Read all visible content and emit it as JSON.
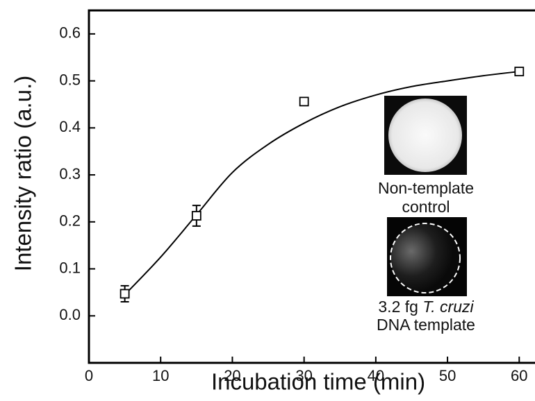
{
  "chart_data": {
    "type": "scatter",
    "x_label": "Incubation time (min)",
    "y_label": "Intensity ratio (a.u.)",
    "x": [
      5,
      15,
      30,
      60
    ],
    "values": [
      0.047,
      0.213,
      0.456,
      0.52
    ],
    "errors": [
      0.017,
      0.022,
      0.008,
      0.008
    ],
    "fit_x": [
      5,
      10,
      15,
      20,
      25,
      30,
      35,
      40,
      45,
      50,
      55,
      60
    ],
    "fit_values": [
      0.045,
      0.125,
      0.215,
      0.305,
      0.365,
      0.41,
      0.445,
      0.47,
      0.488,
      0.5,
      0.511,
      0.52
    ],
    "color": "#000000",
    "xlim": [
      0,
      62.2
    ],
    "ylim": [
      -0.1,
      0.65
    ],
    "xticks": [
      0,
      10,
      20,
      30,
      40,
      50,
      60
    ],
    "yticks": [
      {
        "value": 0,
        "label": "0.0"
      },
      0.1,
      0.2,
      0.3,
      0.4,
      0.5,
      0.6
    ],
    "annotations": [
      "Non-template",
      "control",
      "3.2 fg",
      "T. cruzi",
      "DNA template"
    ]
  }
}
